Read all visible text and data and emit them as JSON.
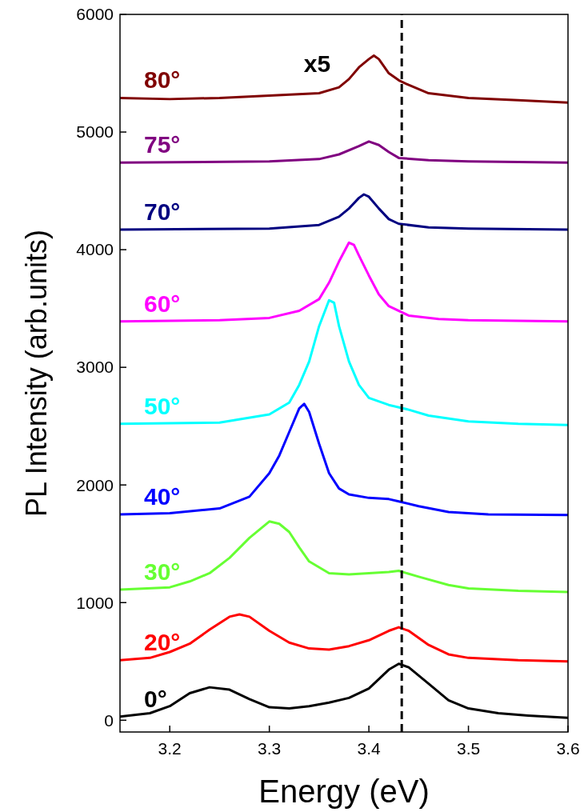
{
  "chart_data": {
    "type": "line",
    "xlabel": "Energy (eV)",
    "ylabel": "PL Intensity (arb.units)",
    "xlim": [
      3.15,
      3.6
    ],
    "xticks": [
      3.2,
      3.3,
      3.4,
      3.5,
      3.6
    ],
    "ylim": [
      -100,
      6000
    ],
    "yticks": [
      0,
      1000,
      2000,
      3000,
      4000,
      5000,
      6000
    ],
    "ref_lines": [
      {
        "axis": "x",
        "value": 3.433,
        "color": "#000000",
        "line_style": "dashed"
      }
    ],
    "annotations": [
      "x5"
    ],
    "series": [
      {
        "name": "0°",
        "color": "#000000",
        "x": [
          3.15,
          3.18,
          3.2,
          3.22,
          3.24,
          3.26,
          3.28,
          3.3,
          3.32,
          3.34,
          3.36,
          3.38,
          3.4,
          3.42,
          3.43,
          3.44,
          3.46,
          3.48,
          3.5,
          3.53,
          3.56,
          3.6
        ],
        "values": [
          30,
          60,
          120,
          230,
          280,
          260,
          180,
          110,
          100,
          120,
          150,
          190,
          270,
          430,
          480,
          450,
          310,
          170,
          100,
          60,
          40,
          20
        ]
      },
      {
        "name": "20°",
        "color": "#ff0000",
        "x": [
          3.15,
          3.18,
          3.2,
          3.22,
          3.24,
          3.26,
          3.27,
          3.28,
          3.3,
          3.32,
          3.34,
          3.36,
          3.38,
          3.4,
          3.42,
          3.43,
          3.44,
          3.46,
          3.48,
          3.5,
          3.55,
          3.6
        ],
        "values": [
          510,
          530,
          580,
          650,
          770,
          880,
          900,
          880,
          760,
          660,
          610,
          600,
          630,
          680,
          760,
          790,
          760,
          640,
          560,
          530,
          510,
          500
        ]
      },
      {
        "name": "30°",
        "color": "#66ff33",
        "x": [
          3.15,
          3.2,
          3.22,
          3.24,
          3.26,
          3.28,
          3.3,
          3.31,
          3.32,
          3.33,
          3.34,
          3.36,
          3.38,
          3.4,
          3.42,
          3.43,
          3.45,
          3.48,
          3.5,
          3.55,
          3.6
        ],
        "values": [
          1110,
          1130,
          1180,
          1250,
          1380,
          1550,
          1690,
          1670,
          1600,
          1470,
          1350,
          1250,
          1240,
          1250,
          1260,
          1270,
          1220,
          1150,
          1120,
          1100,
          1090
        ]
      },
      {
        "name": "40°",
        "color": "#0000ff",
        "x": [
          3.15,
          3.2,
          3.25,
          3.28,
          3.3,
          3.31,
          3.32,
          3.33,
          3.335,
          3.34,
          3.35,
          3.36,
          3.37,
          3.38,
          3.4,
          3.42,
          3.43,
          3.45,
          3.48,
          3.52,
          3.6
        ],
        "values": [
          1750,
          1760,
          1800,
          1900,
          2100,
          2250,
          2450,
          2650,
          2690,
          2620,
          2350,
          2100,
          1970,
          1920,
          1890,
          1880,
          1860,
          1820,
          1770,
          1750,
          1745
        ]
      },
      {
        "name": "50°",
        "color": "#00ffff",
        "x": [
          3.15,
          3.25,
          3.3,
          3.32,
          3.33,
          3.34,
          3.35,
          3.36,
          3.365,
          3.37,
          3.38,
          3.39,
          3.4,
          3.42,
          3.44,
          3.46,
          3.5,
          3.55,
          3.6
        ],
        "values": [
          2520,
          2530,
          2600,
          2700,
          2850,
          3050,
          3350,
          3570,
          3550,
          3350,
          3050,
          2850,
          2740,
          2680,
          2640,
          2590,
          2540,
          2520,
          2510
        ]
      },
      {
        "name": "60°",
        "color": "#ff00ff",
        "x": [
          3.15,
          3.25,
          3.3,
          3.33,
          3.35,
          3.36,
          3.37,
          3.38,
          3.385,
          3.39,
          3.4,
          3.41,
          3.42,
          3.44,
          3.47,
          3.5,
          3.6
        ],
        "values": [
          3390,
          3400,
          3420,
          3480,
          3580,
          3720,
          3900,
          4060,
          4040,
          3950,
          3780,
          3620,
          3520,
          3440,
          3410,
          3400,
          3390
        ]
      },
      {
        "name": "70°",
        "color": "#000080",
        "x": [
          3.15,
          3.3,
          3.35,
          3.37,
          3.38,
          3.39,
          3.395,
          3.4,
          3.41,
          3.42,
          3.43,
          3.46,
          3.5,
          3.6
        ],
        "values": [
          4170,
          4180,
          4210,
          4280,
          4350,
          4440,
          4470,
          4450,
          4350,
          4260,
          4220,
          4190,
          4180,
          4170
        ]
      },
      {
        "name": "75°",
        "color": "#800080",
        "x": [
          3.15,
          3.3,
          3.35,
          3.37,
          3.39,
          3.4,
          3.41,
          3.42,
          3.43,
          3.46,
          3.5,
          3.6
        ],
        "values": [
          4740,
          4750,
          4770,
          4810,
          4880,
          4920,
          4890,
          4830,
          4780,
          4760,
          4750,
          4740
        ]
      },
      {
        "name": "80°",
        "color": "#800000",
        "x": [
          3.15,
          3.2,
          3.25,
          3.3,
          3.35,
          3.37,
          3.38,
          3.39,
          3.4,
          3.405,
          3.41,
          3.42,
          3.43,
          3.44,
          3.46,
          3.5,
          3.55,
          3.6
        ],
        "values": [
          5290,
          5280,
          5290,
          5310,
          5330,
          5380,
          5450,
          5550,
          5620,
          5650,
          5620,
          5500,
          5440,
          5400,
          5330,
          5290,
          5270,
          5250
        ]
      }
    ]
  }
}
